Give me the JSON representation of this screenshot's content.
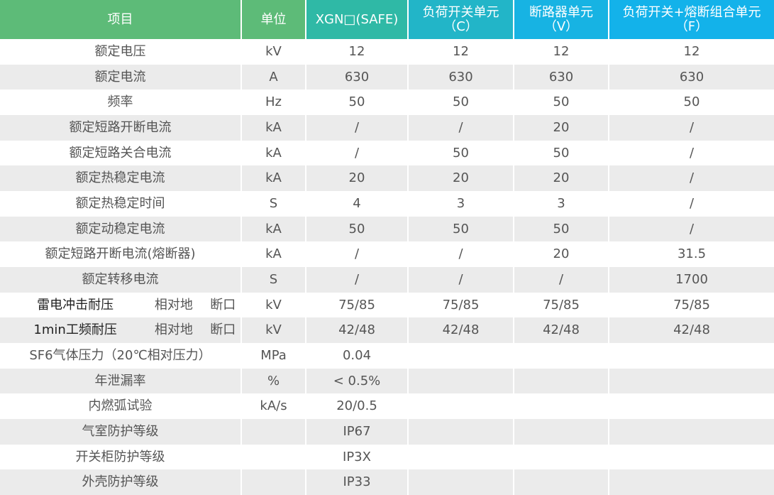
{
  "table": {
    "header": [
      {
        "lines": [
          "项目"
        ]
      },
      {
        "lines": [
          "单位"
        ]
      },
      {
        "lines": [
          "XGN□(SAFE)"
        ]
      },
      {
        "lines": [
          "负荷开关单元",
          "（C）"
        ]
      },
      {
        "lines": [
          "断路器单元",
          "（V）"
        ]
      },
      {
        "lines": [
          "负荷开关+熔断组合单元",
          "（F）"
        ]
      }
    ],
    "rows": [
      {
        "item": "额定电压",
        "unit": "kV",
        "values": [
          "12",
          "12",
          "12",
          "12"
        ]
      },
      {
        "item": "额定电流",
        "unit": "A",
        "values": [
          "630",
          "630",
          "630",
          "630"
        ]
      },
      {
        "item": "频率",
        "unit": "Hz",
        "values": [
          "50",
          "50",
          "50",
          "50"
        ]
      },
      {
        "item": "额定短路开断电流",
        "unit": "kA",
        "values": [
          "/",
          "/",
          "20",
          "/"
        ]
      },
      {
        "item": "额定短路关合电流",
        "unit": "kA",
        "values": [
          "/",
          "50",
          "50",
          "/"
        ]
      },
      {
        "item": "额定热稳定电流",
        "unit": "kA",
        "values": [
          "20",
          "20",
          "20",
          "/"
        ]
      },
      {
        "item": "额定热稳定时间",
        "unit": "S",
        "values": [
          "4",
          "3",
          "3",
          "/"
        ]
      },
      {
        "item": "额定动稳定电流",
        "unit": "kA",
        "values": [
          "50",
          "50",
          "50",
          "/"
        ]
      },
      {
        "item": "额定短路开断电流(熔断器)",
        "unit": "kA",
        "values": [
          "/",
          "/",
          "20",
          "31.5"
        ]
      },
      {
        "item": "额定转移电流",
        "unit": "S",
        "values": [
          "/",
          "/",
          "/",
          "1700"
        ]
      },
      {
        "item": "雷电冲击耐压",
        "sub": [
          "相对地",
          "断口"
        ],
        "unit": "kV",
        "values": [
          "75/85",
          "75/85",
          "75/85",
          "75/85"
        ]
      },
      {
        "item": "1min工频耐压",
        "sub": [
          "相对地",
          "断口"
        ],
        "unit": "kV",
        "values": [
          "42/48",
          "42/48",
          "42/48",
          "42/48"
        ]
      },
      {
        "item": "SF6气体压力（20℃相对压力）",
        "unit": "MPa",
        "values": [
          "0.04"
        ]
      },
      {
        "item": "年泄漏率",
        "unit": "%",
        "values": [
          "< 0.5%"
        ]
      },
      {
        "item": "内燃弧试验",
        "unit": "kA/s",
        "values": [
          "20/0.5"
        ]
      },
      {
        "item": "气室防护等级",
        "values": [
          "IP67"
        ]
      },
      {
        "item": "开关柜防护等级",
        "values": [
          "IP3X"
        ]
      },
      {
        "item": "外壳防护等级",
        "values": [
          "IP33"
        ]
      }
    ]
  }
}
